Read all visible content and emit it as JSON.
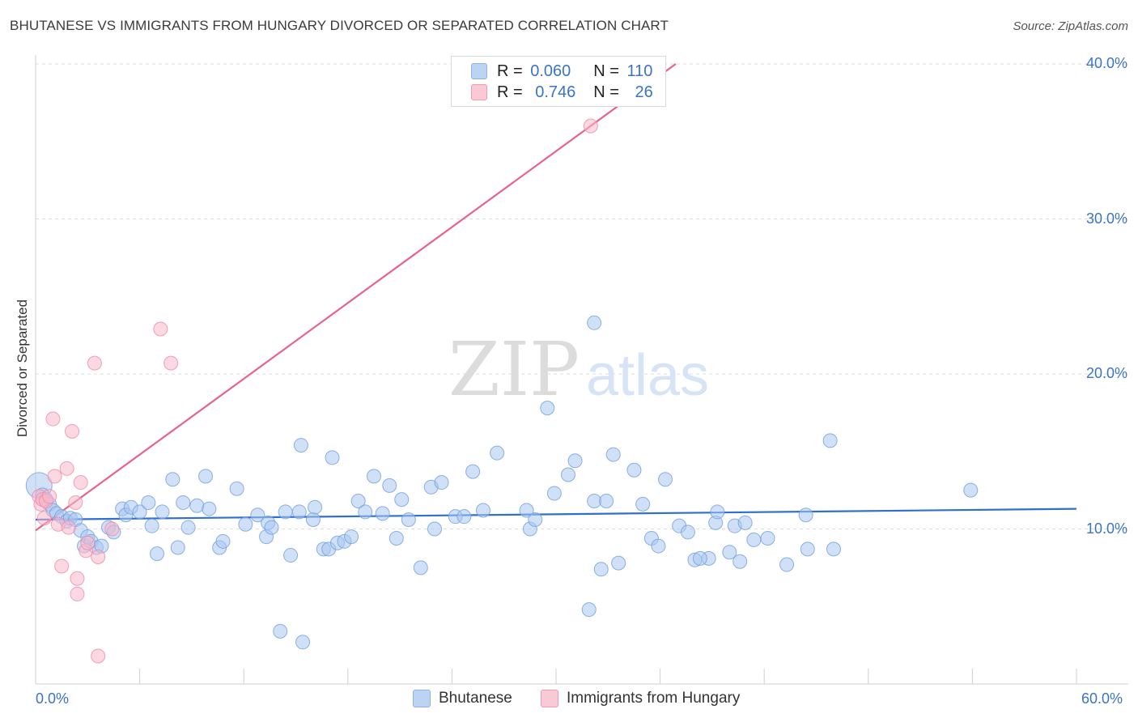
{
  "title": "BHUTANESE VS IMMIGRANTS FROM HUNGARY DIVORCED OR SEPARATED CORRELATION CHART",
  "source": "Source: ZipAtlas.com",
  "watermark": {
    "zip": "ZIP",
    "atlas": "atlas"
  },
  "legend": {
    "r_label": "R =",
    "n_label": "N =",
    "rows": [
      {
        "series": "Bhutanese",
        "r": "0.060",
        "n": "110",
        "color": "#a9c7f0"
      },
      {
        "series": "Immigrants from Hungary",
        "r": "0.746",
        "n": "26",
        "color": "#f7b8ca"
      }
    ]
  },
  "chart_data": {
    "type": "scatter",
    "title": "BHUTANESE VS IMMIGRANTS FROM HUNGARY DIVORCED OR SEPARATED CORRELATION CHART",
    "xlabel": "",
    "ylabel": "Divorced or Separated",
    "xlim": [
      0,
      60
    ],
    "ylim": [
      0,
      40
    ],
    "x_tick_labels": [
      "0.0%",
      "60.0%"
    ],
    "y_ticks": [
      10,
      20,
      30,
      40
    ],
    "y_tick_labels": [
      "10.0%",
      "20.0%",
      "30.0%",
      "40.0%"
    ],
    "grid": true,
    "legend_position": "top-center",
    "series": [
      {
        "name": "Bhutanese",
        "color": "#6f9fe0",
        "fill": "#a9c7f0",
        "r": 0.06,
        "n": 110,
        "trend": {
          "x": [
            0,
            60
          ],
          "y": [
            10.6,
            11.3
          ]
        },
        "points": [
          [
            0.2,
            12.8
          ],
          [
            0.4,
            12.2
          ],
          [
            0.6,
            11.9
          ],
          [
            0.8,
            11.6
          ],
          [
            1.0,
            11.2
          ],
          [
            1.2,
            11.0
          ],
          [
            1.5,
            10.8
          ],
          [
            1.8,
            10.5
          ],
          [
            2.0,
            10.7
          ],
          [
            2.3,
            10.6
          ],
          [
            2.6,
            9.9
          ],
          [
            2.8,
            8.9
          ],
          [
            3.0,
            9.5
          ],
          [
            3.2,
            9.2
          ],
          [
            3.5,
            8.8
          ],
          [
            3.8,
            8.9
          ],
          [
            4.2,
            10.1
          ],
          [
            4.5,
            9.8
          ],
          [
            5.0,
            11.3
          ],
          [
            5.2,
            10.9
          ],
          [
            5.5,
            11.4
          ],
          [
            6.0,
            11.1
          ],
          [
            6.5,
            11.7
          ],
          [
            6.7,
            10.2
          ],
          [
            7.0,
            8.4
          ],
          [
            7.3,
            11.1
          ],
          [
            7.9,
            13.2
          ],
          [
            8.2,
            8.8
          ],
          [
            8.5,
            11.7
          ],
          [
            8.8,
            10.1
          ],
          [
            9.3,
            11.5
          ],
          [
            9.8,
            13.4
          ],
          [
            10.0,
            11.3
          ],
          [
            10.6,
            8.8
          ],
          [
            10.8,
            9.2
          ],
          [
            11.6,
            12.6
          ],
          [
            12.1,
            10.3
          ],
          [
            12.8,
            10.9
          ],
          [
            13.3,
            9.5
          ],
          [
            13.4,
            10.4
          ],
          [
            13.6,
            10.1
          ],
          [
            14.4,
            11.1
          ],
          [
            14.7,
            8.3
          ],
          [
            15.2,
            11.1
          ],
          [
            15.3,
            15.4
          ],
          [
            16.0,
            10.6
          ],
          [
            16.1,
            11.4
          ],
          [
            16.6,
            8.7
          ],
          [
            16.9,
            8.7
          ],
          [
            17.1,
            14.6
          ],
          [
            17.4,
            9.1
          ],
          [
            17.8,
            9.2
          ],
          [
            18.2,
            9.5
          ],
          [
            18.6,
            11.8
          ],
          [
            19.0,
            11.1
          ],
          [
            19.5,
            13.4
          ],
          [
            20.0,
            11.0
          ],
          [
            20.4,
            12.8
          ],
          [
            20.8,
            9.4
          ],
          [
            21.1,
            11.9
          ],
          [
            21.5,
            10.6
          ],
          [
            22.2,
            7.5
          ],
          [
            22.8,
            12.7
          ],
          [
            23.0,
            10.0
          ],
          [
            23.4,
            13.0
          ],
          [
            24.2,
            10.8
          ],
          [
            24.7,
            10.8
          ],
          [
            25.2,
            13.7
          ],
          [
            25.8,
            11.2
          ],
          [
            26.6,
            14.9
          ],
          [
            28.3,
            11.2
          ],
          [
            28.5,
            10.0
          ],
          [
            28.8,
            10.6
          ],
          [
            29.5,
            17.8
          ],
          [
            29.9,
            12.3
          ],
          [
            30.7,
            13.5
          ],
          [
            31.1,
            14.4
          ],
          [
            31.9,
            4.8
          ],
          [
            32.2,
            11.8
          ],
          [
            32.6,
            7.4
          ],
          [
            32.9,
            11.8
          ],
          [
            33.3,
            14.8
          ],
          [
            33.6,
            7.8
          ],
          [
            34.5,
            13.8
          ],
          [
            35.0,
            11.6
          ],
          [
            35.5,
            9.4
          ],
          [
            35.9,
            8.9
          ],
          [
            36.3,
            13.2
          ],
          [
            37.1,
            10.2
          ],
          [
            37.6,
            9.8
          ],
          [
            38.0,
            8.0
          ],
          [
            38.8,
            8.1
          ],
          [
            39.2,
            10.4
          ],
          [
            39.3,
            11.1
          ],
          [
            40.0,
            8.5
          ],
          [
            40.3,
            10.2
          ],
          [
            40.6,
            7.9
          ],
          [
            40.9,
            10.4
          ],
          [
            41.4,
            9.3
          ],
          [
            42.2,
            9.4
          ],
          [
            43.3,
            7.7
          ],
          [
            44.4,
            10.9
          ],
          [
            46.0,
            8.7
          ],
          [
            44.5,
            8.7
          ],
          [
            32.2,
            23.3
          ],
          [
            14.1,
            3.4
          ],
          [
            15.4,
            2.7
          ],
          [
            45.8,
            15.7
          ],
          [
            53.9,
            12.5
          ],
          [
            38.3,
            8.1
          ]
        ]
      },
      {
        "name": "Immigrants from Hungary",
        "color": "#f08aa8",
        "fill": "#f7b8ca",
        "r": 0.746,
        "n": 26,
        "trend": {
          "x": [
            0,
            36.9
          ],
          "y": [
            9.9,
            40
          ]
        },
        "points": [
          [
            0.2,
            12.1
          ],
          [
            0.3,
            11.6
          ],
          [
            0.4,
            11.9
          ],
          [
            0.5,
            10.7
          ],
          [
            0.6,
            11.8
          ],
          [
            0.8,
            12.1
          ],
          [
            1.0,
            17.1
          ],
          [
            1.1,
            13.4
          ],
          [
            1.3,
            10.3
          ],
          [
            1.5,
            7.6
          ],
          [
            1.8,
            13.9
          ],
          [
            1.9,
            10.1
          ],
          [
            2.1,
            16.3
          ],
          [
            2.3,
            11.7
          ],
          [
            2.4,
            6.8
          ],
          [
            2.4,
            5.8
          ],
          [
            2.6,
            13.0
          ],
          [
            2.9,
            8.6
          ],
          [
            3.0,
            9.1
          ],
          [
            3.4,
            20.7
          ],
          [
            3.6,
            8.2
          ],
          [
            3.6,
            1.8
          ],
          [
            4.4,
            10.0
          ],
          [
            7.2,
            22.9
          ],
          [
            7.8,
            20.7
          ],
          [
            32.0,
            36.0
          ]
        ]
      }
    ]
  }
}
